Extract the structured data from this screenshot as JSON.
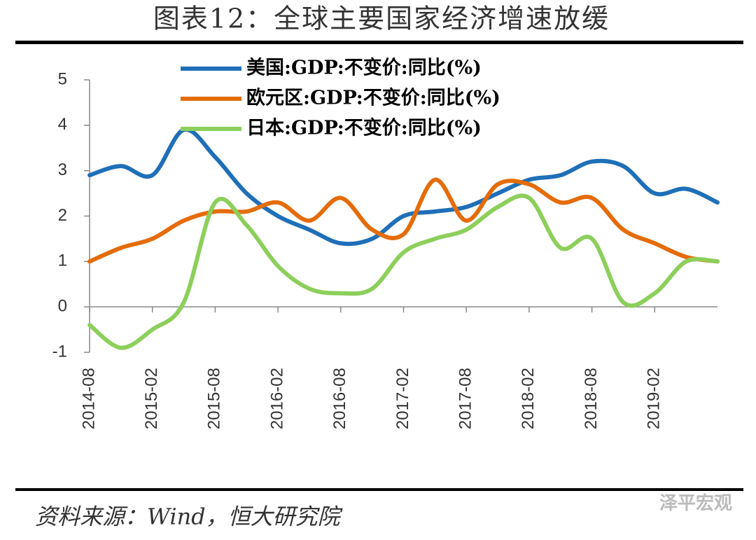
{
  "chart_data": {
    "type": "line",
    "title": "图表12：全球主要国家经济增速放缓",
    "source": "资料来源：Wind，恒大研究院",
    "watermark": "泽平宏观",
    "categories": [
      "2014-08",
      null,
      "2015-02",
      null,
      "2015-08",
      null,
      "2016-02",
      null,
      "2016-08",
      null,
      "2017-02",
      null,
      "2017-08",
      null,
      "2018-02",
      null,
      "2018-08",
      null,
      "2019-02",
      null,
      null
    ],
    "series": [
      {
        "name": "美国:GDP:不变价:同比(%)",
        "color": "#1f6fb8",
        "values": [
          2.9,
          3.1,
          2.9,
          3.9,
          3.3,
          2.5,
          2.0,
          1.7,
          1.4,
          1.5,
          2.0,
          2.1,
          2.2,
          2.5,
          2.8,
          2.9,
          3.2,
          3.1,
          2.5,
          2.6,
          2.3
        ]
      },
      {
        "name": "欧元区:GDP:不变价:同比(%)",
        "color": "#e46c0a",
        "values": [
          1.0,
          1.3,
          1.5,
          1.9,
          2.1,
          2.1,
          2.3,
          1.9,
          2.4,
          1.7,
          1.6,
          2.8,
          1.9,
          2.7,
          2.7,
          2.3,
          2.4,
          1.7,
          1.4,
          1.1,
          1.0
        ]
      },
      {
        "name": "日本:GDP:不变价:同比(%)",
        "color": "#8ccf5b",
        "values": [
          -0.4,
          -0.9,
          -0.5,
          0.1,
          2.3,
          1.8,
          0.9,
          0.4,
          0.3,
          0.4,
          1.2,
          1.5,
          1.7,
          2.2,
          2.4,
          1.3,
          1.5,
          0.1,
          0.3,
          1.0,
          1.0
        ]
      }
    ],
    "ylim": [
      -1,
      5
    ],
    "yticks": [
      -1,
      0,
      1,
      2,
      3,
      4,
      5
    ],
    "legend": "top"
  }
}
